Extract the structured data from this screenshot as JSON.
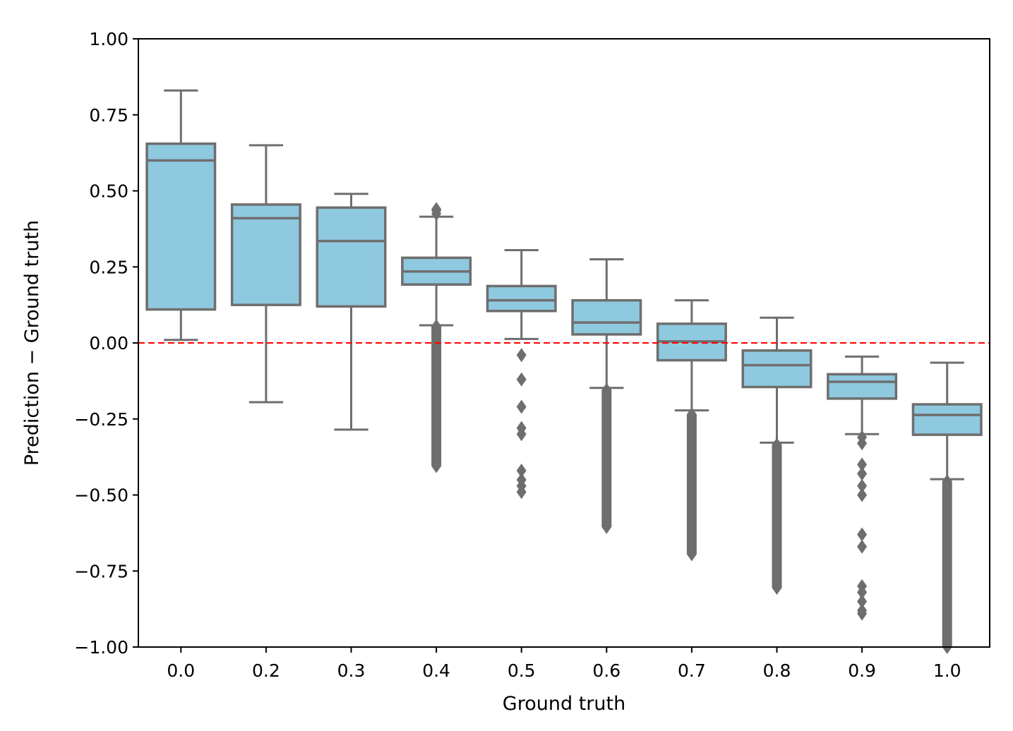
{
  "chart_data": {
    "type": "box",
    "title": "",
    "xlabel": "Ground truth",
    "ylabel": "Prediction − Ground truth",
    "ylim": [
      -1.0,
      1.0
    ],
    "yticks": [
      {
        "value": 1.0,
        "label": "1.00"
      },
      {
        "value": 0.75,
        "label": "0.75"
      },
      {
        "value": 0.5,
        "label": "0.50"
      },
      {
        "value": 0.25,
        "label": "0.25"
      },
      {
        "value": 0.0,
        "label": "0.00"
      },
      {
        "value": -0.25,
        "label": "−0.25"
      },
      {
        "value": -0.5,
        "label": "−0.50"
      },
      {
        "value": -0.75,
        "label": "−0.75"
      },
      {
        "value": -1.0,
        "label": "−1.00"
      }
    ],
    "reference_line": {
      "y": 0.0,
      "color": "#ff0000",
      "style": "dashed"
    },
    "colors": {
      "box_fill": "#8fc9e0",
      "line": "#6e6e6e",
      "axis": "#000000"
    },
    "boxes": [
      {
        "category": "0.0",
        "whisker_low": 0.01,
        "q1": 0.11,
        "median": 0.6,
        "q3": 0.655,
        "whisker_high": 0.83,
        "outliers": [],
        "outlier_range": null
      },
      {
        "category": "0.2",
        "whisker_low": -0.195,
        "q1": 0.125,
        "median": 0.41,
        "q3": 0.455,
        "whisker_high": 0.65,
        "outliers": [],
        "outlier_range": null
      },
      {
        "category": "0.3",
        "whisker_low": -0.285,
        "q1": 0.12,
        "median": 0.335,
        "q3": 0.445,
        "whisker_high": 0.49,
        "outliers": [],
        "outlier_range": null
      },
      {
        "category": "0.4",
        "whisker_low": 0.058,
        "q1": 0.192,
        "median": 0.235,
        "q3": 0.28,
        "whisker_high": 0.415,
        "outliers": [
          0.425,
          0.435,
          0.44
        ],
        "outlier_range": [
          -0.405,
          0.055
        ]
      },
      {
        "category": "0.5",
        "whisker_low": 0.013,
        "q1": 0.105,
        "median": 0.14,
        "q3": 0.187,
        "whisker_high": 0.305,
        "outliers": [
          -0.04,
          -0.12,
          -0.21,
          -0.28,
          -0.3,
          -0.42,
          -0.45,
          -0.47,
          -0.49
        ],
        "outlier_range": null
      },
      {
        "category": "0.6",
        "whisker_low": -0.148,
        "q1": 0.028,
        "median": 0.067,
        "q3": 0.14,
        "whisker_high": 0.275,
        "outliers": [],
        "outlier_range": [
          -0.605,
          -0.155
        ]
      },
      {
        "category": "0.7",
        "whisker_low": -0.222,
        "q1": -0.057,
        "median": 0.005,
        "q3": 0.063,
        "whisker_high": 0.14,
        "outliers": [],
        "outlier_range": [
          -0.695,
          -0.235
        ]
      },
      {
        "category": "0.8",
        "whisker_low": -0.328,
        "q1": -0.145,
        "median": -0.073,
        "q3": -0.025,
        "whisker_high": 0.083,
        "outliers": [],
        "outlier_range": [
          -0.805,
          -0.335
        ]
      },
      {
        "category": "0.9",
        "whisker_low": -0.3,
        "q1": -0.183,
        "median": -0.128,
        "q3": -0.103,
        "whisker_high": -0.045,
        "outliers": [
          -0.31,
          -0.33,
          -0.4,
          -0.43,
          -0.47,
          -0.5,
          -0.63,
          -0.67,
          -0.8,
          -0.82,
          -0.85,
          -0.88,
          -0.89
        ],
        "outlier_range": null
      },
      {
        "category": "1.0",
        "whisker_low": -0.448,
        "q1": -0.302,
        "median": -0.237,
        "q3": -0.202,
        "whisker_high": -0.065,
        "outliers": [],
        "outlier_range": [
          -1.0,
          -0.455
        ]
      }
    ]
  }
}
